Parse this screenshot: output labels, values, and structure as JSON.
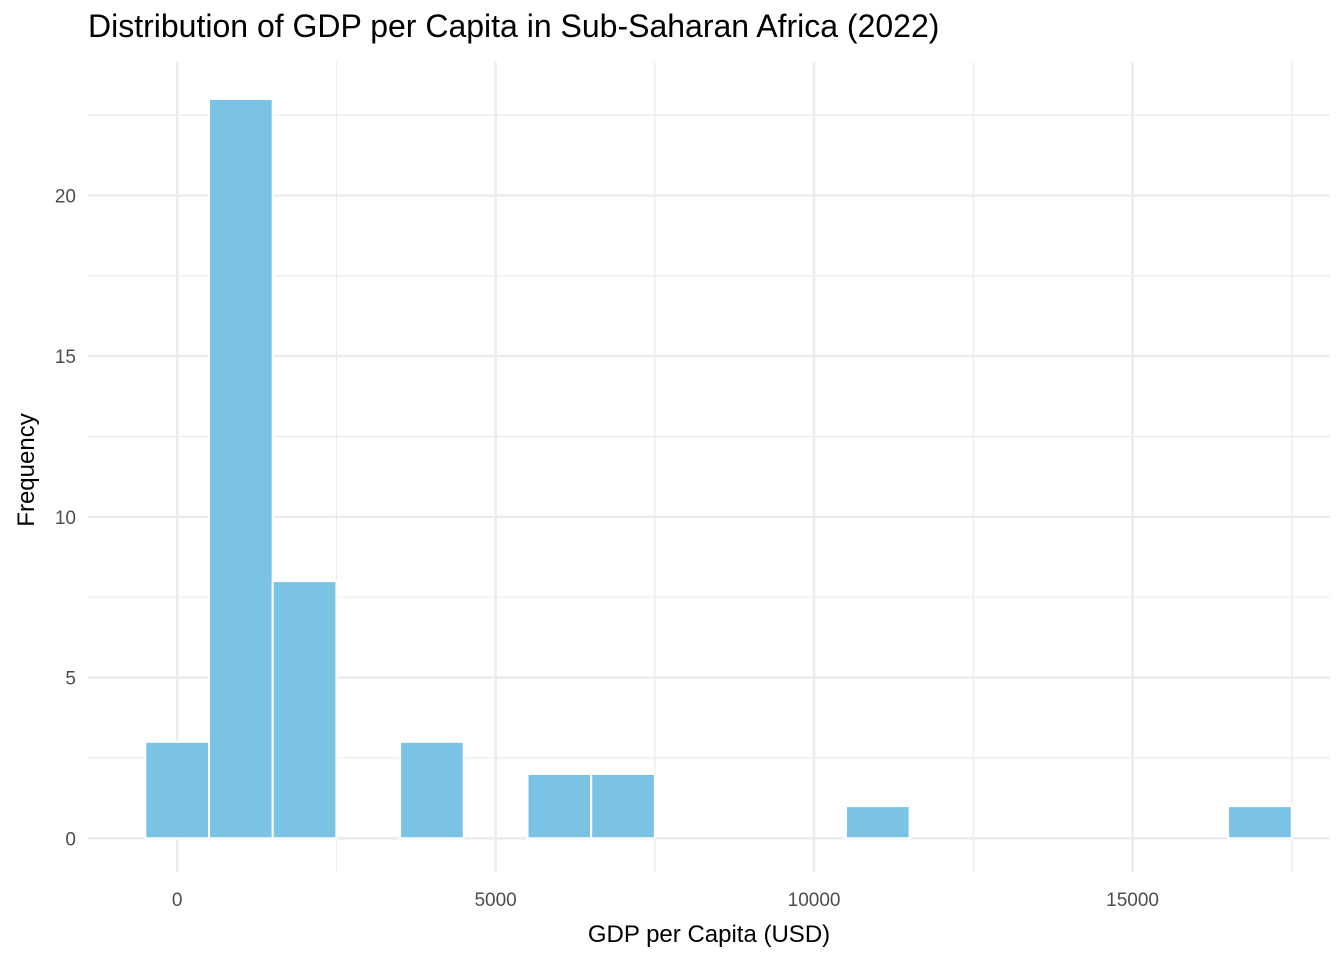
{
  "chart_data": {
    "type": "bar",
    "title": "Distribution of GDP per Capita in Sub-Saharan Africa (2022)",
    "xlabel": "GDP per Capita (USD)",
    "ylabel": "Frequency",
    "bin_width": 1000,
    "bins": [
      {
        "x": 0,
        "count": 3
      },
      {
        "x": 1000,
        "count": 23
      },
      {
        "x": 2000,
        "count": 8
      },
      {
        "x": 4000,
        "count": 3
      },
      {
        "x": 6000,
        "count": 2
      },
      {
        "x": 7000,
        "count": 2
      },
      {
        "x": 11000,
        "count": 1
      },
      {
        "x": 17000,
        "count": 1
      }
    ],
    "xlim": [
      -1400,
      18100
    ],
    "ylim": [
      -1.05,
      24.15
    ],
    "xticks": [
      0,
      5000,
      10000,
      15000
    ],
    "xtick_labels": [
      "0",
      "5000",
      "10000",
      "15000"
    ],
    "yticks": [
      0,
      5,
      10,
      15,
      20
    ],
    "ytick_labels": [
      "0",
      "5",
      "10",
      "15",
      "20"
    ],
    "grid": true,
    "bar_color": "#7AC3E5",
    "bar_border_color": "#ffffff",
    "grid_color": "#ebebeb"
  }
}
